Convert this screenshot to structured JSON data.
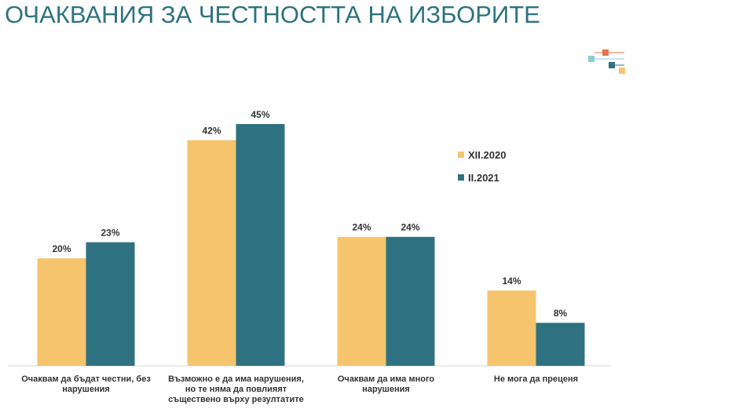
{
  "chart_data": {
    "type": "bar",
    "title": "ОЧАКВАНИЯ ЗА ЧЕСТНОСТТА НА ИЗБОРИТЕ",
    "categories": [
      "Очаквам да бъдат честни, без нарушения",
      "Възможно е да има нарушения, но те няма да повлияят съществено върху резултатите",
      "Очаквам да има много нарушения",
      "Не мога да преценя"
    ],
    "series": [
      {
        "name": "XII.2020",
        "color": "#f5c46c",
        "values": [
          20,
          42,
          24,
          14
        ],
        "value_labels": [
          "20%",
          "42%",
          "24%",
          "14%"
        ]
      },
      {
        "name": "II.2021",
        "color": "#2e7281",
        "values": [
          23,
          45,
          24,
          8
        ],
        "value_labels": [
          "23%",
          "45%",
          "24%",
          "8%"
        ]
      }
    ]
  }
}
